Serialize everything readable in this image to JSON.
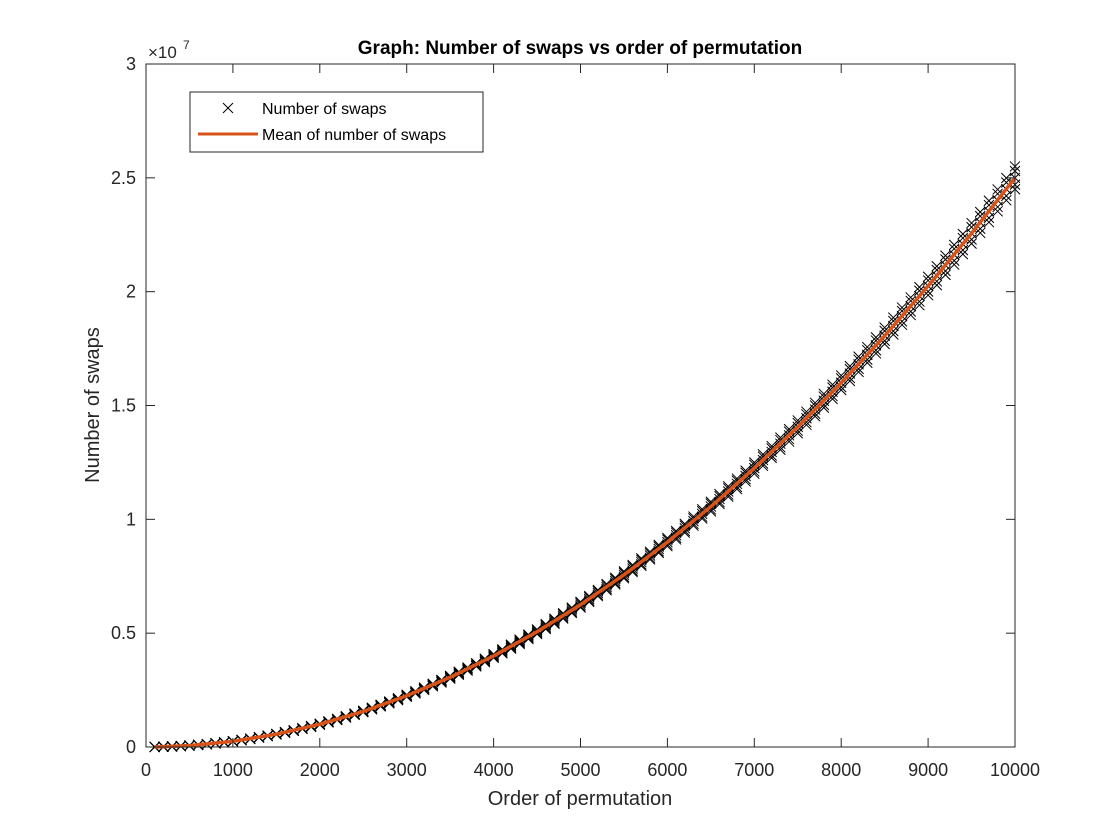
{
  "chart_data": {
    "type": "scatter",
    "title": "Graph: Number of swaps vs order of permutation",
    "xlabel": "Order of permutation",
    "ylabel": "Number of swaps",
    "xlim": [
      0,
      10000
    ],
    "ylim": [
      0,
      30000000
    ],
    "y_exponent_label": "×10",
    "y_exponent_power": "7",
    "x_ticks": [
      0,
      1000,
      2000,
      3000,
      4000,
      5000,
      6000,
      7000,
      8000,
      9000,
      10000
    ],
    "x_tick_labels": [
      "0",
      "1000",
      "2000",
      "3000",
      "4000",
      "5000",
      "6000",
      "7000",
      "8000",
      "9000",
      "10000"
    ],
    "y_ticks": [
      0,
      5000000,
      10000000,
      15000000,
      20000000,
      25000000,
      30000000
    ],
    "y_tick_labels": [
      "0",
      "0.5",
      "1",
      "1.5",
      "2",
      "2.5",
      "3"
    ],
    "grid": false,
    "legend_position": "top-left",
    "series": [
      {
        "name": "Number of swaps",
        "kind": "scatter",
        "marker": "x",
        "color": "#000000",
        "x": [
          100,
          200,
          300,
          400,
          500,
          600,
          700,
          800,
          900,
          1000,
          1100,
          1200,
          1300,
          1400,
          1500,
          1600,
          1700,
          1800,
          1900,
          2000,
          2100,
          2200,
          2300,
          2400,
          2500,
          2600,
          2700,
          2800,
          2900,
          3000,
          3100,
          3200,
          3300,
          3400,
          3500,
          3600,
          3700,
          3800,
          3900,
          4000,
          4100,
          4200,
          4300,
          4400,
          4500,
          4600,
          4700,
          4800,
          4900,
          5000,
          5100,
          5200,
          5300,
          5400,
          5500,
          5600,
          5700,
          5800,
          5900,
          6000,
          6100,
          6200,
          6300,
          6400,
          6500,
          6600,
          6700,
          6800,
          6900,
          7000,
          7100,
          7200,
          7300,
          7400,
          7500,
          7600,
          7700,
          7800,
          7900,
          8000,
          8100,
          8200,
          8300,
          8400,
          8500,
          8600,
          8700,
          8800,
          8900,
          9000,
          9100,
          9200,
          9300,
          9400,
          9500,
          9600,
          9700,
          9800,
          9900,
          10000
        ],
        "y": [
          2500,
          10000,
          22500,
          40000,
          62500,
          90000,
          122500,
          160000,
          202500,
          250000,
          302500,
          360000,
          422500,
          490000,
          562500,
          640000,
          722500,
          810000,
          902500,
          1000000,
          1102500,
          1210000,
          1322500,
          1440000,
          1562500,
          1690000,
          1822500,
          1960000,
          2102500,
          2250000,
          2402500,
          2560000,
          2722500,
          2890000,
          3062500,
          3240000,
          3422500,
          3610000,
          3802500,
          4000000,
          4202500,
          4410000,
          4622500,
          4840000,
          5062500,
          5290000,
          5522500,
          5760000,
          6002500,
          6250000,
          6502500,
          6760000,
          7022500,
          7290000,
          7562500,
          7840000,
          8122500,
          8410000,
          8702500,
          9000000,
          9302500,
          9610000,
          9922500,
          10240000,
          10562500,
          10890000,
          11222500,
          11560000,
          11902500,
          12250000,
          12602500,
          12960000,
          13322500,
          13690000,
          14062500,
          14440000,
          14822500,
          15210000,
          15602500,
          16000000,
          16402500,
          16810000,
          17222500,
          17640000,
          18062500,
          18490000,
          18922500,
          19360000,
          19802500,
          20250000,
          20702500,
          21160000,
          21622500,
          22090000,
          22562500,
          23040000,
          23522500,
          24010000,
          24502500,
          25000000
        ]
      },
      {
        "name": "Mean of number of swaps",
        "kind": "line",
        "color": "#D95319",
        "x": [
          100,
          500,
          1000,
          1500,
          2000,
          2500,
          3000,
          3500,
          4000,
          4500,
          5000,
          5500,
          6000,
          6500,
          7000,
          7500,
          8000,
          8500,
          9000,
          9500,
          10000
        ],
        "y": [
          2500,
          62500,
          250000,
          562500,
          1000000,
          1562500,
          2250000,
          3062500,
          4000000,
          5062500,
          6250000,
          7562500,
          9000000,
          10562500,
          12250000,
          14062500,
          16000000,
          18062500,
          20250000,
          22562500,
          25000000
        ]
      }
    ]
  }
}
